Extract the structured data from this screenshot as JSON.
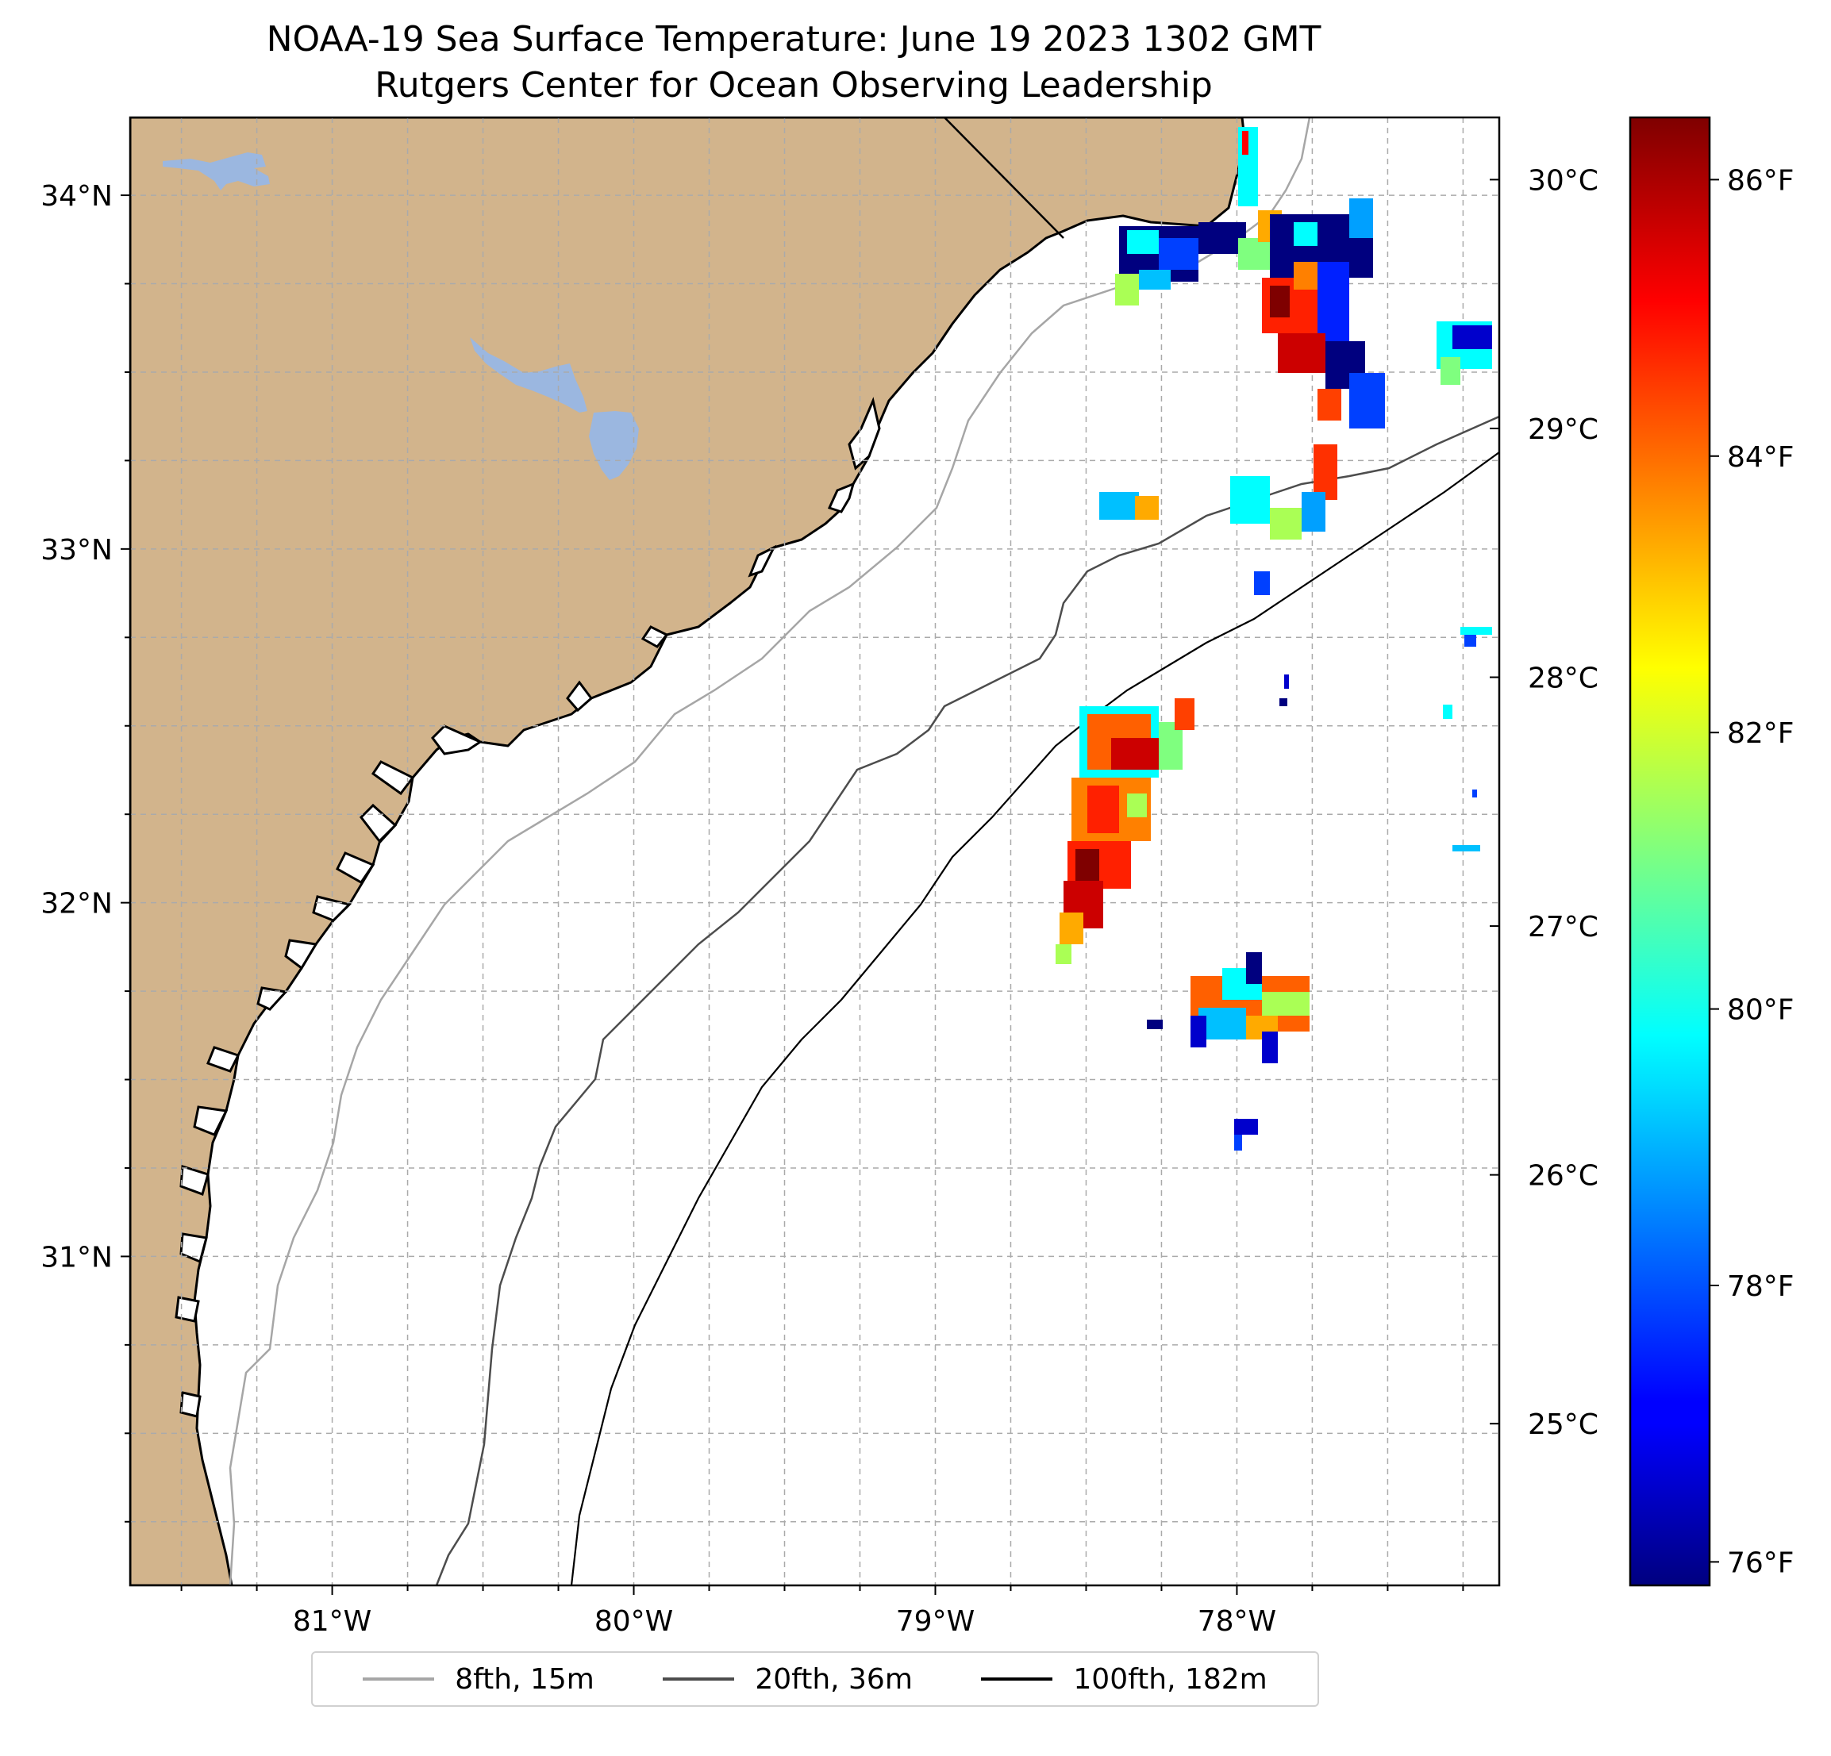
{
  "title": {
    "line1": "NOAA-19 Sea Surface Temperature: June 19 2023 1302 GMT",
    "line2": "Rutgers Center for Ocean Observing Leadership"
  },
  "map": {
    "lon_range": [
      -81.67,
      -77.13
    ],
    "lat_range": [
      30.07,
      34.22
    ],
    "x_ticks": [
      {
        "lon": -81,
        "label": "81°W"
      },
      {
        "lon": -80,
        "label": "80°W"
      },
      {
        "lon": -79,
        "label": "79°W"
      },
      {
        "lon": -78,
        "label": "78°W"
      }
    ],
    "y_ticks": [
      {
        "lat": 34,
        "label": "34°N"
      },
      {
        "lat": 33,
        "label": "33°N"
      },
      {
        "lat": 32,
        "label": "32°N"
      },
      {
        "lat": 31,
        "label": "31°N"
      }
    ],
    "gridlines": "dashed, every 0.25 degrees",
    "colors": {
      "land": "#D2B48C",
      "lakes": "#9BB7E0",
      "ocean": "#FFFFFF",
      "grid": "#AAAAAA"
    }
  },
  "colorbar": {
    "colormap": "jet",
    "range_celsius": [
      24.35,
      30.25
    ],
    "celsius_ticks": [
      {
        "value": 30,
        "label": "30°C"
      },
      {
        "value": 29,
        "label": "29°C"
      },
      {
        "value": 28,
        "label": "28°C"
      },
      {
        "value": 27,
        "label": "27°C"
      },
      {
        "value": 26,
        "label": "26°C"
      },
      {
        "value": 25,
        "label": "25°C"
      }
    ],
    "fahrenheit_ticks": [
      {
        "value": 86,
        "label": "86°F"
      },
      {
        "value": 84,
        "label": "84°F"
      },
      {
        "value": 82,
        "label": "82°F"
      },
      {
        "value": 80,
        "label": "80°F"
      },
      {
        "value": 78,
        "label": "78°F"
      },
      {
        "value": 76,
        "label": "76°F"
      }
    ]
  },
  "legend": [
    {
      "label": "8fth, 15m",
      "color": "#A6A6A6"
    },
    {
      "label": "20fth, 36m",
      "color": "#4D4D4D"
    },
    {
      "label": "100fth, 182m",
      "color": "#000000"
    }
  ]
}
